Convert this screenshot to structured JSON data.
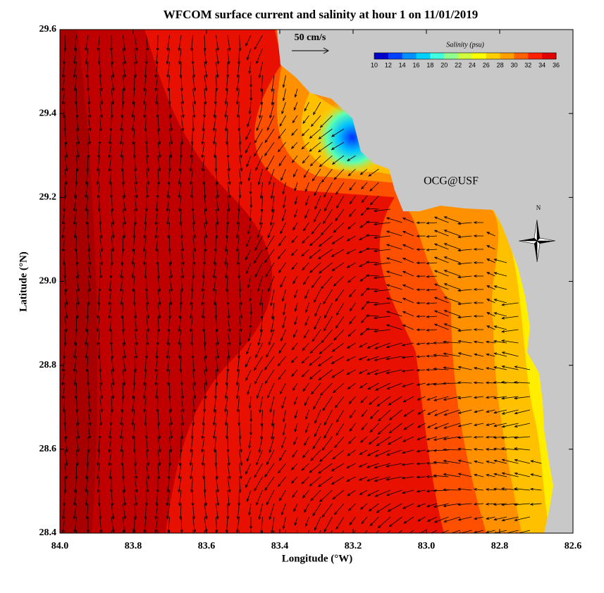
{
  "map": {
    "title": "WFCOM surface current and salinity at hour 1 on 11/01/2019",
    "xlabel": "Longitude (°W)",
    "ylabel": "Latitude (°N)",
    "xlim": [
      84.0,
      82.6
    ],
    "ylim": [
      28.4,
      29.6
    ],
    "xticks": [
      {
        "value": 84.0,
        "label": "84.0"
      },
      83.8,
      83.6,
      83.4,
      83.2,
      {
        "value": 83.0,
        "label": "83.0"
      },
      82.8,
      82.6
    ],
    "yticks": [
      28.4,
      28.6,
      28.8,
      {
        "value": 29.0,
        "label": "29.0"
      },
      29.2,
      29.4,
      29.6
    ],
    "land_color": "#c8c8c8",
    "vector_scale_label": "50 cm/s",
    "credit": "OCG@USF",
    "compass": "N",
    "colorbar": {
      "title": "Salinity (psu)",
      "range": [
        10,
        36
      ],
      "ticks": [
        10,
        12,
        14,
        16,
        18,
        20,
        22,
        24,
        26,
        28,
        30,
        32,
        34,
        36
      ],
      "colors": [
        "#0000c8",
        "#0040ff",
        "#0090ff",
        "#00d0ff",
        "#40ffe0",
        "#90ff90",
        "#d0ff40",
        "#ffff00",
        "#ffd000",
        "#ffa000",
        "#ff6000",
        "#ff2000",
        "#e00000"
      ]
    }
  }
}
